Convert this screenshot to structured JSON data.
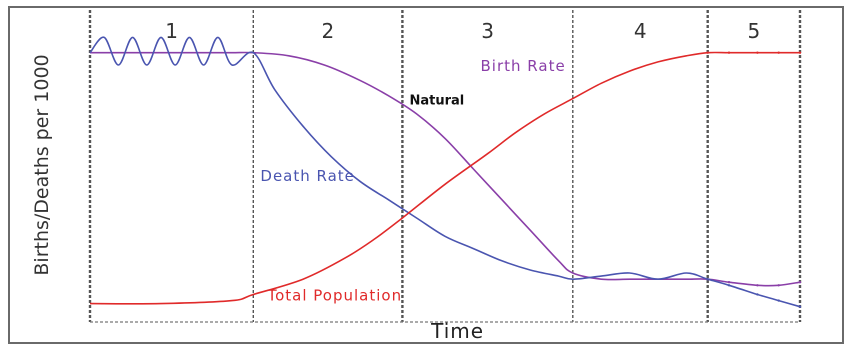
{
  "chart_data": {
    "type": "line",
    "title": "",
    "xlabel": "Time",
    "ylabel": "Births/Deaths per 1000",
    "xlim": [
      0,
      100
    ],
    "ylim": [
      0,
      100
    ],
    "stages": [
      {
        "label": "1",
        "start": 0,
        "end": 23
      },
      {
        "label": "2",
        "start": 23,
        "end": 44
      },
      {
        "label": "3",
        "start": 44,
        "end": 68
      },
      {
        "label": "4",
        "start": 68,
        "end": 87
      },
      {
        "label": "5",
        "start": 87,
        "end": 100
      }
    ],
    "grid": false,
    "series": [
      {
        "name": "Birth Rate",
        "color": "#8a3fa8",
        "x": [
          0,
          4,
          8,
          12,
          16,
          20,
          23,
          28,
          33,
          38,
          42,
          46,
          50,
          54,
          58,
          62,
          66,
          68,
          72,
          76,
          80,
          84,
          87,
          90,
          94,
          97,
          100
        ],
        "y": [
          88,
          88,
          88,
          88,
          88,
          88,
          88,
          87,
          84,
          79,
          74,
          68,
          60,
          50,
          40,
          30,
          20,
          16,
          14,
          14,
          14,
          14,
          14,
          13,
          12,
          12,
          13
        ]
      },
      {
        "name": "Death Rate",
        "color": "#4a55b0",
        "x": [
          0,
          2,
          4,
          6,
          8,
          10,
          12,
          14,
          16,
          18,
          20,
          23,
          26,
          30,
          34,
          38,
          42,
          46,
          50,
          54,
          58,
          62,
          66,
          68,
          72,
          76,
          80,
          84,
          87,
          90,
          94,
          97,
          100
        ],
        "y": [
          88,
          93,
          84,
          93,
          84,
          93,
          84,
          93,
          84,
          93,
          84,
          88,
          76,
          64,
          54,
          46,
          40,
          34,
          28,
          24,
          20,
          17,
          15,
          14,
          15,
          16,
          14,
          16,
          14,
          12,
          9,
          7,
          5
        ]
      },
      {
        "name": "Total Population",
        "color": "#e02a2a",
        "x": [
          0,
          10,
          20,
          23,
          30,
          36,
          40,
          44,
          50,
          56,
          60,
          64,
          68,
          72,
          76,
          80,
          84,
          87,
          90,
          94,
          97,
          100
        ],
        "y": [
          6,
          6,
          7,
          9,
          14,
          21,
          27,
          34,
          45,
          55,
          62,
          68,
          73,
          78,
          82,
          85,
          87,
          88,
          88,
          88,
          88,
          88
        ]
      }
    ],
    "annotations": [
      {
        "text": "Birth Rate",
        "x": 55,
        "y": 82,
        "color": "#8a3fa8"
      },
      {
        "text": "Natural",
        "x": 45,
        "y": 71,
        "color": "#111111"
      },
      {
        "text": "Death Rate",
        "x": 24,
        "y": 46,
        "color": "#4a55b0"
      },
      {
        "text": "Total Population",
        "x": 25,
        "y": 7,
        "color": "#e02a2a"
      }
    ]
  }
}
